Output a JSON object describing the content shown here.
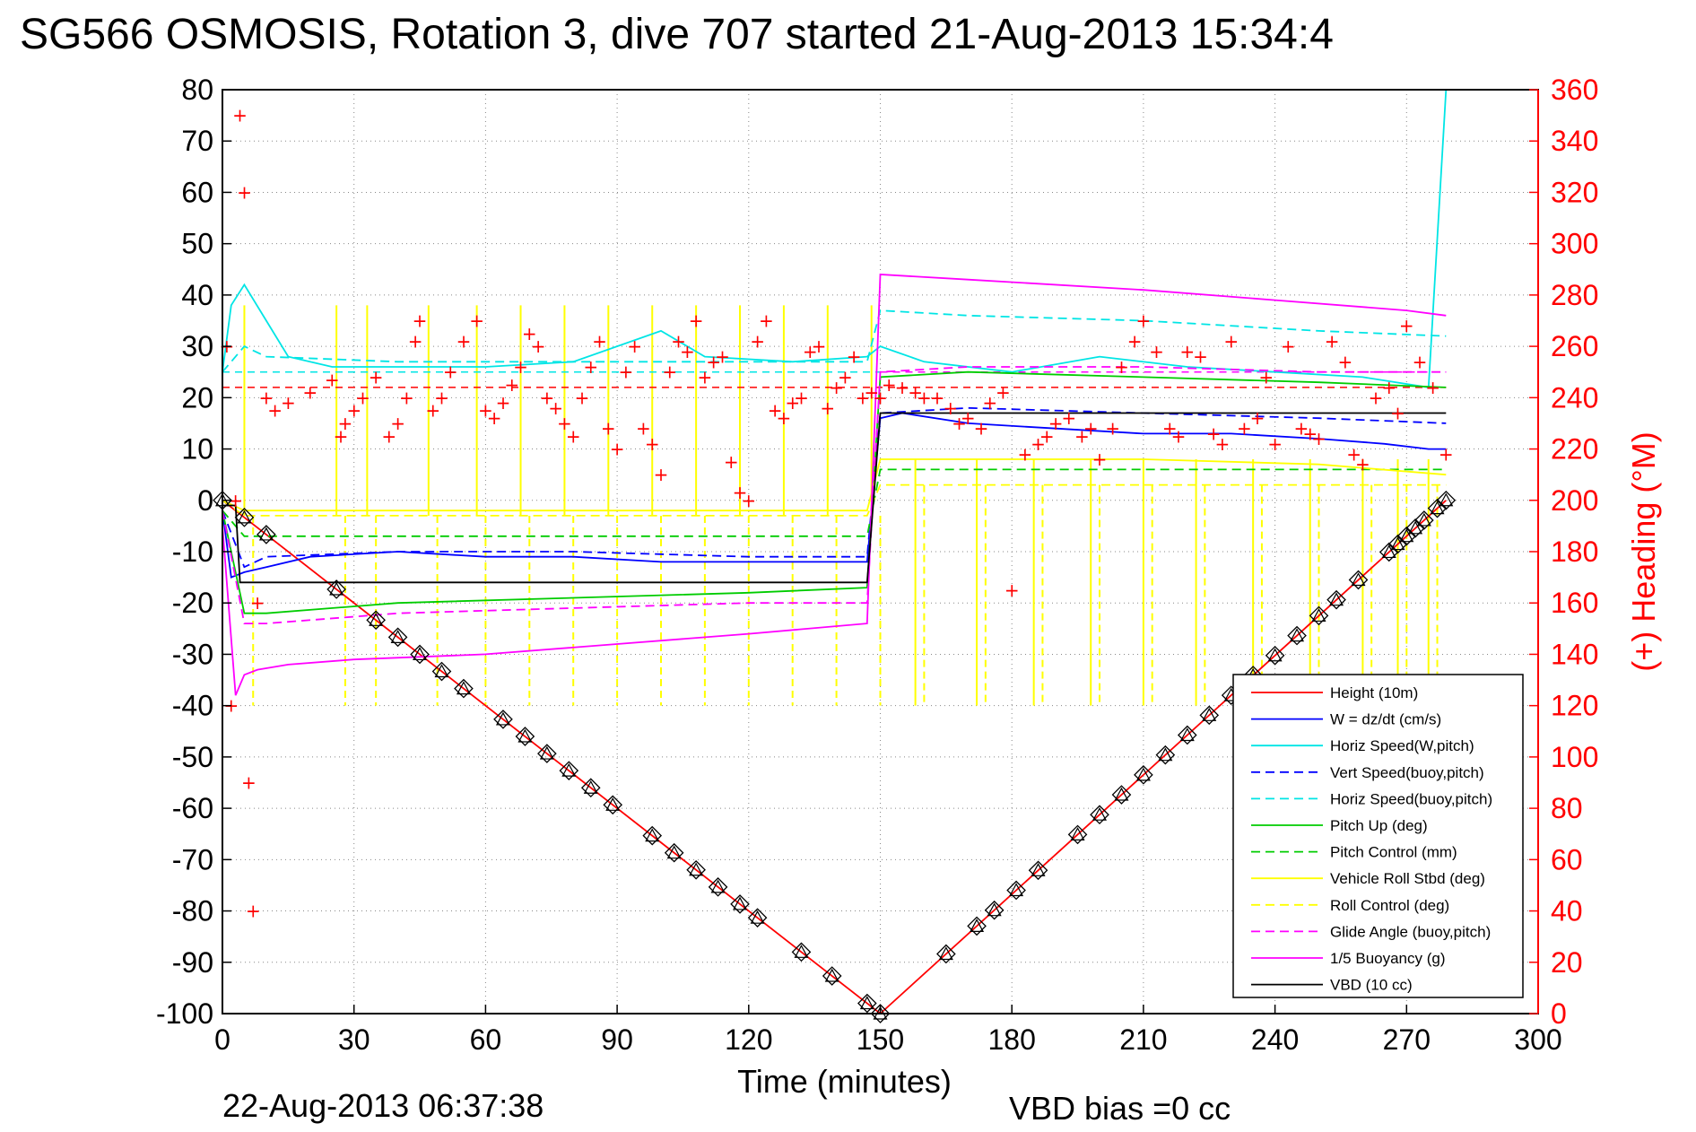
{
  "title": "SG566 OSMOSIS, Rotation 3, dive 707 started 21-Aug-2013 15:34:4",
  "footer_date": "22-Aug-2013 06:37:38",
  "vbd_bias": "VBD bias =0 cc",
  "chart_data": {
    "type": "line",
    "xlabel": "Time (minutes)",
    "ylabel_right": "(+) Heading (°M)",
    "xlim": [
      0,
      300
    ],
    "ylim": [
      -100,
      80
    ],
    "ylim_right": [
      0,
      360
    ],
    "grid": true,
    "legend_position": "lower-right",
    "x_ticks": [
      "0",
      "30",
      "60",
      "90",
      "120",
      "150",
      "180",
      "210",
      "240",
      "270",
      "300"
    ],
    "y_ticks": [
      "80",
      "70",
      "60",
      "50",
      "40",
      "30",
      "20",
      "10",
      "0",
      "-10",
      "-20",
      "-30",
      "-40",
      "-50",
      "-60",
      "-70",
      "-80",
      "-90",
      "-100"
    ],
    "y_right_ticks": [
      "360",
      "340",
      "320",
      "300",
      "280",
      "260",
      "240",
      "220",
      "200",
      "180",
      "160",
      "140",
      "120",
      "100",
      "80",
      "60",
      "40",
      "20",
      "0"
    ],
    "colors": {
      "height": "#ff0000",
      "w": "#0000ff",
      "cyan": "#00e5e5",
      "green": "#00cc00",
      "yellow": "#ffff00",
      "magenta": "#ff00ff",
      "black": "#000000",
      "heading": "#ff0000"
    },
    "series": [
      {
        "name": "Height (10m)",
        "color": "#ff0000",
        "dash": false,
        "x": [
          0,
          150,
          279
        ],
        "y": [
          0,
          -100,
          0
        ]
      },
      {
        "name": "W = dz/dt (cm/s)",
        "color": "#0000ff",
        "dash": false,
        "x": [
          0,
          2,
          5,
          10,
          20,
          40,
          60,
          80,
          100,
          120,
          140,
          147,
          150,
          155,
          170,
          190,
          210,
          230,
          250,
          265,
          275,
          279
        ],
        "y": [
          -2,
          -15,
          -14,
          -13,
          -11,
          -10,
          -11,
          -11,
          -12,
          -12,
          -12,
          -12,
          16,
          17,
          15,
          14,
          13,
          13,
          12,
          11,
          10,
          10
        ]
      },
      {
        "name": "Horiz Speed(W,pitch)",
        "color": "#00e5e5",
        "dash": false,
        "x": [
          0,
          2,
          5,
          10,
          15,
          25,
          40,
          60,
          80,
          100,
          110,
          130,
          147,
          150,
          160,
          180,
          200,
          220,
          240,
          260,
          275,
          279
        ],
        "y": [
          25,
          38,
          42,
          35,
          28,
          26,
          26,
          26,
          27,
          33,
          28,
          27,
          28,
          30,
          27,
          25,
          28,
          26,
          25,
          24,
          22,
          80
        ]
      },
      {
        "name": "Vert Speed(buoy,pitch)",
        "color": "#0000ff",
        "dash": true,
        "x": [
          0,
          5,
          10,
          40,
          80,
          120,
          147,
          150,
          170,
          210,
          250,
          279
        ],
        "y": [
          -2,
          -13,
          -11,
          -10,
          -10,
          -11,
          -11,
          17,
          18,
          17,
          16,
          15
        ]
      },
      {
        "name": "Horiz Speed(buoy,pitch)",
        "color": "#00e5e5",
        "dash": true,
        "x": [
          0,
          5,
          10,
          40,
          80,
          120,
          147,
          150,
          170,
          210,
          250,
          279
        ],
        "y": [
          25,
          30,
          28,
          27,
          27,
          27,
          27,
          37,
          36,
          35,
          33,
          32
        ]
      },
      {
        "name": "Pitch Up (deg)",
        "color": "#00cc00",
        "dash": false,
        "x": [
          0,
          5,
          10,
          40,
          80,
          120,
          147,
          150,
          170,
          210,
          250,
          279
        ],
        "y": [
          -2,
          -22,
          -22,
          -20,
          -19,
          -18,
          -17,
          24,
          25,
          24,
          23,
          22
        ]
      },
      {
        "name": "Pitch Control (mm)",
        "color": "#00cc00",
        "dash": true,
        "x": [
          0,
          5,
          10,
          40,
          80,
          120,
          147,
          150,
          170,
          210,
          250,
          279
        ],
        "y": [
          -2,
          -7,
          -7,
          -7,
          -7,
          -7,
          -7,
          6,
          6,
          6,
          6,
          6
        ]
      },
      {
        "name": "Vehicle Roll Stbd (deg)",
        "color": "#ffff00",
        "dash": false,
        "x": [
          0,
          5,
          10,
          40,
          80,
          120,
          147,
          150,
          170,
          210,
          250,
          279
        ],
        "y": [
          0,
          -2,
          -2,
          -2,
          -2,
          -2,
          -2,
          8,
          8,
          8,
          7,
          5
        ]
      },
      {
        "name": "Roll Control (deg)",
        "color": "#ffff00",
        "dash": true,
        "x": [
          0,
          5,
          10,
          40,
          80,
          120,
          147,
          150,
          170,
          210,
          250,
          279
        ],
        "y": [
          0,
          -3,
          -3,
          -3,
          -3,
          -3,
          -3,
          3,
          3,
          3,
          3,
          3
        ]
      },
      {
        "name": "Glide Angle (buoy,pitch)",
        "color": "#ff00ff",
        "dash": true,
        "x": [
          0,
          5,
          10,
          40,
          80,
          120,
          147,
          150,
          170,
          210,
          250,
          279
        ],
        "y": [
          -2,
          -24,
          -24,
          -22,
          -21,
          -20,
          -20,
          25,
          26,
          26,
          25,
          25
        ]
      },
      {
        "name": "1/5 Buoyancy (g)",
        "color": "#ff00ff",
        "dash": false,
        "x": [
          0,
          3,
          5,
          8,
          15,
          30,
          60,
          90,
          120,
          147,
          150,
          170,
          210,
          240,
          270,
          279
        ],
        "y": [
          -5,
          -38,
          -34,
          -33,
          -32,
          -31,
          -30,
          -28,
          -26,
          -24,
          44,
          43,
          41,
          39,
          37,
          36
        ]
      },
      {
        "name": "VBD (10 cc)",
        "color": "#000000",
        "dash": false,
        "x": [
          0,
          3,
          4,
          147,
          150,
          279
        ],
        "y": [
          -1,
          -1,
          -16,
          -16,
          17,
          17
        ]
      }
    ],
    "reference_lines": [
      {
        "color": "#ff0000",
        "dash": true,
        "y": 22,
        "x": [
          0,
          279
        ]
      },
      {
        "color": "#00e5e5",
        "dash": true,
        "y": 25,
        "x": [
          0,
          150
        ]
      },
      {
        "color": "#ff00ff",
        "dash": true,
        "y": 25,
        "x": [
          150,
          279
        ]
      }
    ],
    "vbd_markers_minutes": [
      0,
      5,
      10,
      26,
      35,
      40,
      45,
      50,
      55,
      64,
      69,
      74,
      79,
      84,
      89,
      98,
      103,
      108,
      113,
      118,
      122,
      132,
      139,
      147,
      150,
      165,
      172,
      176,
      181,
      186,
      195,
      200,
      205,
      210,
      215,
      220,
      225,
      230,
      235,
      240,
      245,
      250,
      254,
      259,
      266,
      268,
      270,
      272,
      274,
      277,
      279
    ],
    "heading_plus": {
      "color": "#ff0000",
      "x": [
        1,
        2,
        3,
        4,
        5,
        6,
        7,
        8,
        10,
        12,
        15,
        20,
        25,
        27,
        28,
        30,
        32,
        35,
        38,
        40,
        42,
        44,
        45,
        48,
        50,
        52,
        55,
        58,
        60,
        62,
        64,
        66,
        68,
        70,
        72,
        74,
        76,
        78,
        80,
        82,
        84,
        86,
        88,
        90,
        92,
        94,
        96,
        98,
        100,
        102,
        104,
        106,
        108,
        110,
        112,
        114,
        116,
        118,
        120,
        122,
        124,
        126,
        128,
        130,
        132,
        134,
        136,
        138,
        140,
        142,
        144,
        146,
        148,
        150,
        152,
        155,
        158,
        160,
        163,
        166,
        168,
        170,
        173,
        175,
        178,
        180,
        183,
        186,
        188,
        190,
        193,
        196,
        198,
        200,
        203,
        205,
        208,
        210,
        213,
        216,
        218,
        220,
        223,
        226,
        228,
        230,
        233,
        236,
        238,
        240,
        243,
        246,
        248,
        250,
        253,
        256,
        258,
        260,
        263,
        266,
        268,
        270,
        273,
        276,
        279
      ],
      "y": [
        260,
        120,
        200,
        350,
        320,
        90,
        40,
        160,
        240,
        235,
        238,
        242,
        247,
        225,
        230,
        235,
        240,
        248,
        225,
        230,
        240,
        262,
        270,
        235,
        240,
        250,
        262,
        270,
        235,
        232,
        238,
        245,
        252,
        265,
        260,
        240,
        236,
        230,
        225,
        240,
        252,
        262,
        228,
        220,
        250,
        260,
        228,
        222,
        210,
        250,
        262,
        258,
        270,
        248,
        254,
        256,
        215,
        203,
        200,
        262,
        270,
        235,
        232,
        238,
        240,
        258,
        260,
        236,
        244,
        248,
        256,
        240,
        242,
        240,
        245,
        244,
        242,
        240,
        240,
        236,
        230,
        232,
        228,
        238,
        242,
        165,
        218,
        222,
        225,
        230,
        232,
        225,
        228,
        216,
        228,
        252,
        262,
        270,
        258,
        228,
        225,
        258,
        256,
        226,
        222,
        262,
        228,
        232,
        248,
        222,
        260,
        228,
        226,
        224,
        262,
        254,
        218,
        214,
        240,
        244,
        234,
        268,
        254,
        244,
        218
      ]
    }
  },
  "legend": [
    {
      "label": "Height (10m)"
    },
    {
      "label": "W = dz/dt (cm/s)"
    },
    {
      "label": "Horiz Speed(W,pitch)"
    },
    {
      "label": "Vert Speed(buoy,pitch)"
    },
    {
      "label": "Horiz Speed(buoy,pitch)"
    },
    {
      "label": "Pitch Up (deg)"
    },
    {
      "label": "Pitch Control (mm)"
    },
    {
      "label": "Vehicle Roll Stbd (deg)"
    },
    {
      "label": "Roll Control (deg)"
    },
    {
      "label": "Glide Angle (buoy,pitch)"
    },
    {
      "label": "1/5 Buoyancy (g)"
    },
    {
      "label": "VBD (10 cc)"
    }
  ]
}
